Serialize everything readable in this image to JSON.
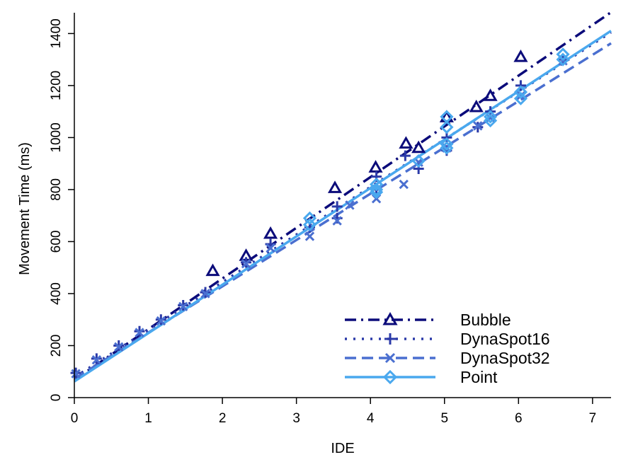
{
  "chart_data": {
    "type": "scatter",
    "xlabel": "IDE",
    "ylabel": "Movement Time (ms)",
    "xlim": [
      0,
      7.25
    ],
    "ylim": [
      0,
      1480
    ],
    "x_ticks": [
      0,
      1,
      2,
      3,
      4,
      5,
      6,
      7
    ],
    "y_ticks": [
      0,
      200,
      400,
      600,
      800,
      1000,
      1200,
      1400
    ],
    "x_tick_labels": [
      "0",
      "1",
      "2",
      "3",
      "4",
      "5",
      "6",
      "7"
    ],
    "y_tick_labels": [
      "0",
      "200",
      "400",
      "600",
      "800",
      "1000",
      "1200",
      "1400"
    ],
    "grid": false,
    "legend_position": "bottom-right",
    "series": [
      {
        "name": "Bubble",
        "color": "#0b0b7a",
        "marker": "triangle",
        "line_style": "dashdot",
        "fit": {
          "intercept": 68,
          "slope": 195
        },
        "points": [
          [
            1.87,
            487
          ],
          [
            2.32,
            545
          ],
          [
            2.65,
            630
          ],
          [
            3.52,
            806
          ],
          [
            4.07,
            885
          ],
          [
            4.48,
            977
          ],
          [
            4.65,
            960
          ],
          [
            5.03,
            1078
          ],
          [
            5.43,
            1117
          ],
          [
            5.62,
            1160
          ],
          [
            6.03,
            1310
          ]
        ]
      },
      {
        "name": "DynaSpot16",
        "color": "#2b3aa8",
        "marker": "plus",
        "line_style": "dotted",
        "fit": {
          "intercept": 78,
          "slope": 183
        },
        "points": [
          [
            0.02,
            95
          ],
          [
            0.3,
            150
          ],
          [
            0.6,
            200
          ],
          [
            0.88,
            255
          ],
          [
            1.17,
            300
          ],
          [
            1.47,
            355
          ],
          [
            1.77,
            405
          ],
          [
            2.32,
            520
          ],
          [
            2.65,
            590
          ],
          [
            3.18,
            655
          ],
          [
            3.55,
            735
          ],
          [
            3.55,
            690
          ],
          [
            4.08,
            800
          ],
          [
            4.08,
            850
          ],
          [
            4.47,
            930
          ],
          [
            4.65,
            880
          ],
          [
            5.03,
            1000
          ],
          [
            5.03,
            950
          ],
          [
            5.45,
            1040
          ],
          [
            5.62,
            1100
          ],
          [
            6.03,
            1200
          ],
          [
            6.6,
            1300
          ]
        ]
      },
      {
        "name": "DynaSpot32",
        "color": "#4a6fd0",
        "marker": "cross",
        "line_style": "dashed",
        "fit": {
          "intercept": 72,
          "slope": 178
        },
        "points": [
          [
            0.02,
            92
          ],
          [
            0.3,
            145
          ],
          [
            0.6,
            195
          ],
          [
            0.88,
            250
          ],
          [
            1.17,
            295
          ],
          [
            1.47,
            350
          ],
          [
            1.77,
            400
          ],
          [
            2.32,
            515
          ],
          [
            2.65,
            575
          ],
          [
            3.18,
            620
          ],
          [
            3.55,
            680
          ],
          [
            3.72,
            740
          ],
          [
            4.08,
            765
          ],
          [
            4.45,
            820
          ],
          [
            4.65,
            905
          ],
          [
            5.03,
            960
          ],
          [
            5.45,
            1045
          ],
          [
            5.62,
            1075
          ],
          [
            6.03,
            1160
          ],
          [
            6.6,
            1295
          ]
        ]
      },
      {
        "name": "Point",
        "color": "#4aa8ee",
        "marker": "diamond",
        "line_style": "solid",
        "fit": {
          "intercept": 62,
          "slope": 186
        },
        "points": [
          [
            3.18,
            690
          ],
          [
            3.18,
            665
          ],
          [
            4.08,
            820
          ],
          [
            4.08,
            790
          ],
          [
            4.08,
            800
          ],
          [
            4.65,
            910
          ],
          [
            5.03,
            1080
          ],
          [
            5.03,
            1040
          ],
          [
            5.03,
            975
          ],
          [
            5.03,
            960
          ],
          [
            5.62,
            1080
          ],
          [
            5.62,
            1065
          ],
          [
            6.03,
            1175
          ],
          [
            6.03,
            1150
          ],
          [
            6.6,
            1320
          ],
          [
            6.6,
            1300
          ]
        ]
      }
    ]
  }
}
